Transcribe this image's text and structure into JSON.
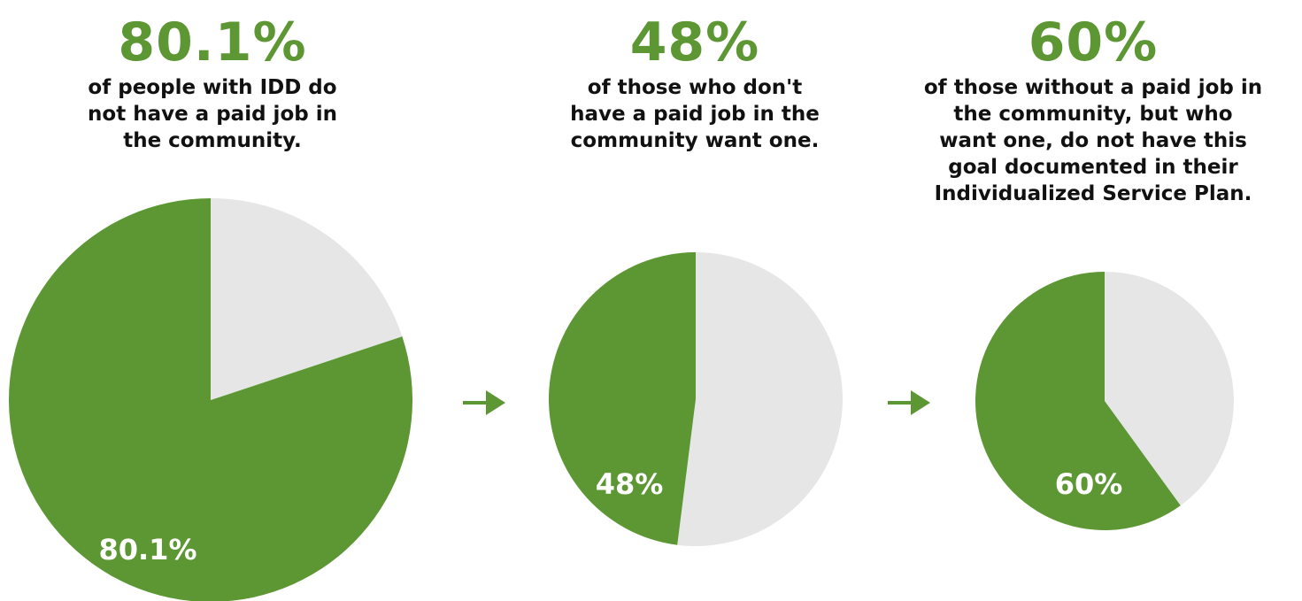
{
  "colors": {
    "green": "#5c9733",
    "gray": "#e6e6e7",
    "text": "#111111",
    "label": "#ffffff"
  },
  "panels": [
    {
      "headline": "80.1%",
      "lines": [
        "of people with IDD do",
        "not have a paid job in",
        "the community."
      ]
    },
    {
      "headline": "48%",
      "lines": [
        "of those who don't",
        "have a paid job in the",
        "community want one."
      ]
    },
    {
      "headline": "60%",
      "lines": [
        "of those without a paid job in",
        "the community, but who",
        "want one, do not have this",
        "goal documented in their",
        "Individualized Service Plan."
      ]
    }
  ],
  "chart_data": [
    {
      "type": "pie",
      "slices": [
        {
          "value": 80.1,
          "color": "#5c9733",
          "label": "80.1%"
        },
        {
          "value": 19.9,
          "color": "#e6e6e7",
          "label": ""
        }
      ]
    },
    {
      "type": "pie",
      "slices": [
        {
          "value": 48,
          "color": "#5c9733",
          "label": "48%"
        },
        {
          "value": 52,
          "color": "#e6e6e7",
          "label": ""
        }
      ]
    },
    {
      "type": "pie",
      "slices": [
        {
          "value": 60,
          "color": "#5c9733",
          "label": "60%"
        },
        {
          "value": 40,
          "color": "#e6e6e7",
          "label": ""
        }
      ]
    }
  ],
  "arrows": [
    "arrow-right-icon",
    "arrow-right-icon"
  ]
}
